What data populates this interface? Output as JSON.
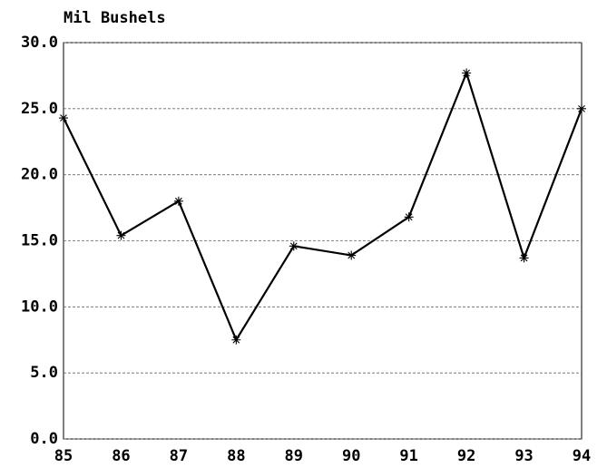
{
  "chart_data": {
    "type": "line",
    "ylabel": "Mil Bushels",
    "categories": [
      "85",
      "86",
      "87",
      "88",
      "89",
      "90",
      "91",
      "92",
      "93",
      "94"
    ],
    "values": [
      24.3,
      15.4,
      18.0,
      7.5,
      14.6,
      13.9,
      16.8,
      27.7,
      13.7,
      25.0
    ],
    "color": "#000000",
    "ylim": [
      0,
      30
    ],
    "yticks": [
      {
        "value": 0,
        "label": "0.0"
      },
      {
        "value": 5,
        "label": "5.0"
      },
      {
        "value": 10,
        "label": "10.0"
      },
      {
        "value": 15,
        "label": "15.0"
      },
      {
        "value": 20,
        "label": "20.0"
      },
      {
        "value": 25,
        "label": "25.0"
      },
      {
        "value": 30,
        "label": "30.0"
      }
    ],
    "grid": true
  }
}
